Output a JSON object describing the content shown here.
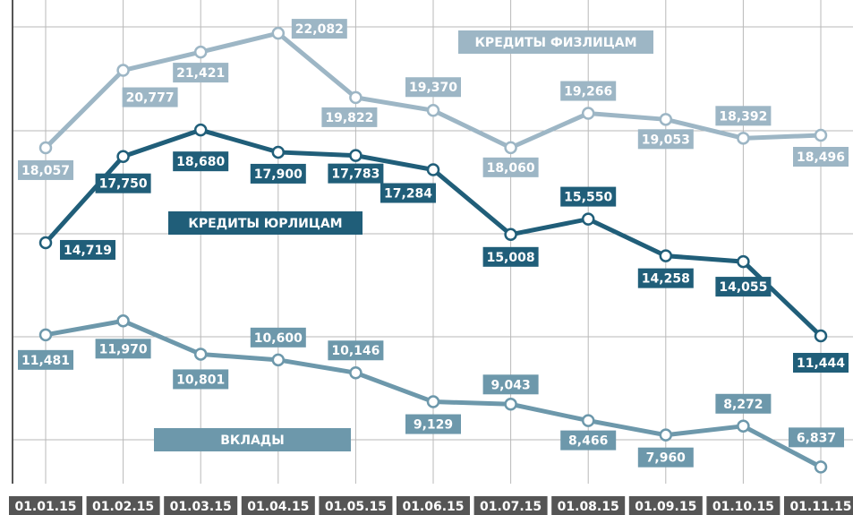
{
  "chart_data": {
    "type": "line",
    "categories": [
      "01.01.15",
      "01.02.15",
      "01.03.15",
      "01.04.15",
      "01.05.15",
      "01.06.15",
      "01.07.15",
      "01.08.15",
      "01.09.15",
      "01.10.15",
      "01.11.15"
    ],
    "ylim": [
      6250,
      23250
    ],
    "grid": true,
    "series": [
      {
        "name": "КРЕДИТЫ ФИЗЛИЦАМ",
        "color": "#9db6c5",
        "values": [
          18057,
          20777,
          21421,
          22082,
          19822,
          19370,
          18060,
          19266,
          19053,
          18392,
          18496
        ],
        "value_labels": [
          "18,057",
          "20,777",
          "21,421",
          "22,082",
          "19,822",
          "19,370",
          "18,060",
          "19,266",
          "19,053",
          "18,392",
          "18,496"
        ]
      },
      {
        "name": "КРЕДИТЫ ЮРЛИЦАМ",
        "color": "#205e79",
        "values": [
          14719,
          17750,
          18680,
          17900,
          17783,
          17284,
          15008,
          15550,
          14258,
          14055,
          11444
        ],
        "value_labels": [
          "14,719",
          "17,750",
          "18,680",
          "17,900",
          "17,783",
          "17,284",
          "15,008",
          "15,550",
          "14,258",
          "14,055",
          "11,444"
        ]
      },
      {
        "name": "ВКЛАДЫ",
        "color": "#6d98ab",
        "values": [
          11481,
          11970,
          10801,
          10600,
          10146,
          9129,
          9043,
          8466,
          7960,
          8272,
          6837
        ],
        "value_labels": [
          "11,481",
          "11,970",
          "10,801",
          "10,600",
          "10,146",
          "9,129",
          "9,043",
          "8,466",
          "7,960",
          "8,272",
          "6,837"
        ]
      }
    ]
  }
}
